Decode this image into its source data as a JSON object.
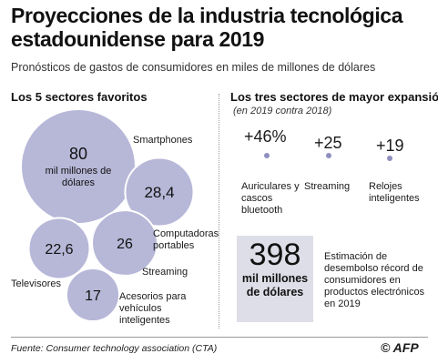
{
  "title": "Proyecciones de la industria tecnológica estadounidense para 2019",
  "subtitle": "Pronósticos de gastos de consumidores en miles de millones de dólares",
  "left_heading": "Los 5 sectores favoritos",
  "right_heading": "Los tres sectores de mayor expansión",
  "right_subheading": "(en 2019 contra 2018)",
  "colors": {
    "bubble": "#b7b7d8",
    "bubble_stroke": "#ffffff",
    "dot": "#8f8fbf",
    "box": "#dedee8"
  },
  "chart_data": [
    {
      "type": "bubble",
      "unit": "miles de millones de dólares",
      "items": [
        {
          "label": "Smartphones",
          "value": 80,
          "value_text": "80",
          "unit_text": "mil millones de dólares"
        },
        {
          "label": "Computadoras portables",
          "value": 28.4,
          "value_text": "28,4"
        },
        {
          "label": "Streaming",
          "value": 26,
          "value_text": "26"
        },
        {
          "label": "Televisores",
          "value": 22.6,
          "value_text": "22,6"
        },
        {
          "label": "Acesorios para vehículos inteligentes",
          "value": 17,
          "value_text": "17"
        }
      ]
    },
    {
      "type": "annotation",
      "items": [
        {
          "label": "Auriculares y cascos bluetooth",
          "value": 46,
          "value_text": "+46%"
        },
        {
          "label": "Streaming",
          "value": 25,
          "value_text": "+25"
        },
        {
          "label": "Relojes inteligentes",
          "value": 19,
          "value_text": "+19"
        }
      ]
    }
  ],
  "estimate": {
    "number": "398",
    "unit": "mil millones de dólares",
    "description": "Estimación de desembolso récord de consumidores en productos electrónicos en 2019"
  },
  "source": "Fuente: Consumer technology association (CTA)",
  "credit": "© AFP"
}
